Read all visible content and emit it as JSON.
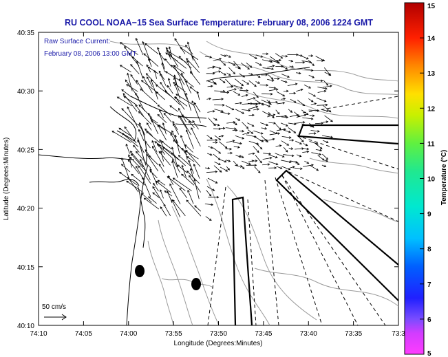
{
  "title": "RU COOL  NOAA−15  Sea Surface Temperature:  February 08, 2006 1224 GMT",
  "inset": {
    "line1": "Raw Surface Current:",
    "line2": "February 08, 2006 13:00 GMT"
  },
  "scale_label": "50 cm/s",
  "axes": {
    "xlabel": "Longitude (Degrees:Minutes)",
    "ylabel": "Latitude (Degrees:Minutes)",
    "x_ticks": [
      "74:10",
      "74:05",
      "74:00",
      "73:55",
      "73:50",
      "73:45",
      "73:40",
      "73:35",
      "73:3"
    ],
    "y_ticks": [
      "40:35",
      "40:30",
      "40:25",
      "40:20",
      "40:15",
      "40:10"
    ]
  },
  "colorbar": {
    "label": "Temperature (°C)",
    "ticks": [
      "15",
      "14",
      "13",
      "12",
      "11",
      "10",
      "9",
      "8",
      "7",
      "6",
      "5"
    ],
    "range": [
      5,
      15
    ]
  },
  "colors": {
    "title": "#1a1aa8",
    "inset": "#1a1aa8",
    "axes": "#000000",
    "contour": "#9a9a9a"
  }
}
